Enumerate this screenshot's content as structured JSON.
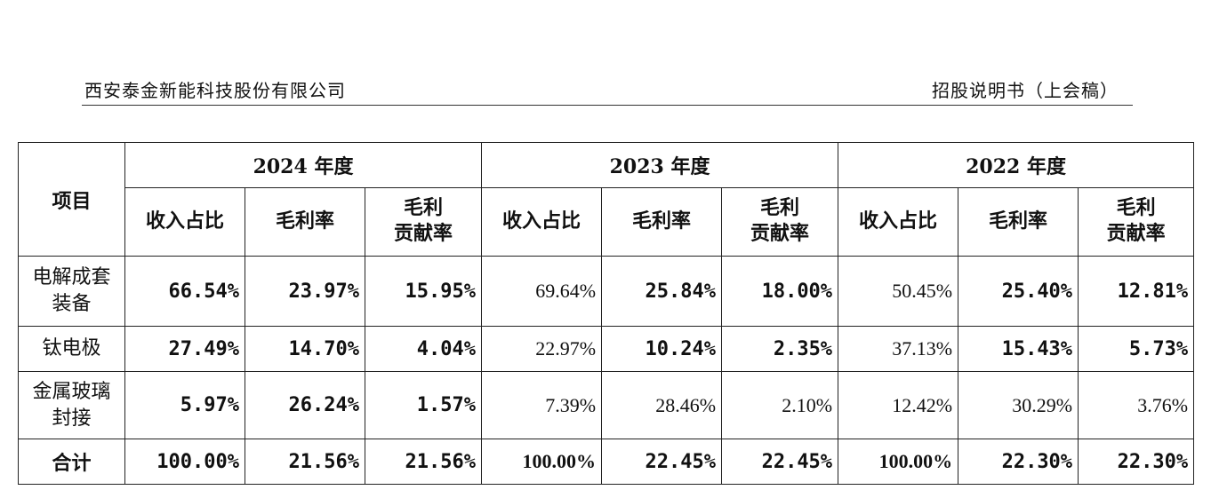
{
  "header": {
    "company": "西安泰金新能科技股份有限公司",
    "document": "招股说明书（上会稿）"
  },
  "table": {
    "item_header": "项目",
    "years": [
      "2024 年度",
      "2023 年度",
      "2022 年度"
    ],
    "sub_headers": {
      "revenue_share": "收入占比",
      "gross_margin": "毛利率",
      "margin_contribution_line1": "毛利",
      "margin_contribution_line2": "贡献率"
    },
    "rows": [
      {
        "item": "电解成套装备",
        "values": [
          "66.54%",
          "23.97%",
          "15.95%",
          "69.64%",
          "25.84%",
          "18.00%",
          "50.45%",
          "25.40%",
          "12.81%"
        ]
      },
      {
        "item": "钛电极",
        "values": [
          "27.49%",
          "14.70%",
          "4.04%",
          "22.97%",
          "10.24%",
          "2.35%",
          "37.13%",
          "15.43%",
          "5.73%"
        ]
      },
      {
        "item": "金属玻璃封接",
        "values": [
          "5.97%",
          "26.24%",
          "1.57%",
          "7.39%",
          "28.46%",
          "2.10%",
          "12.42%",
          "30.29%",
          "3.76%"
        ]
      },
      {
        "item": "合计",
        "values": [
          "100.00%",
          "21.56%",
          "21.56%",
          "100.00%",
          "22.45%",
          "22.45%",
          "100.00%",
          "22.30%",
          "22.30%"
        ]
      }
    ]
  }
}
